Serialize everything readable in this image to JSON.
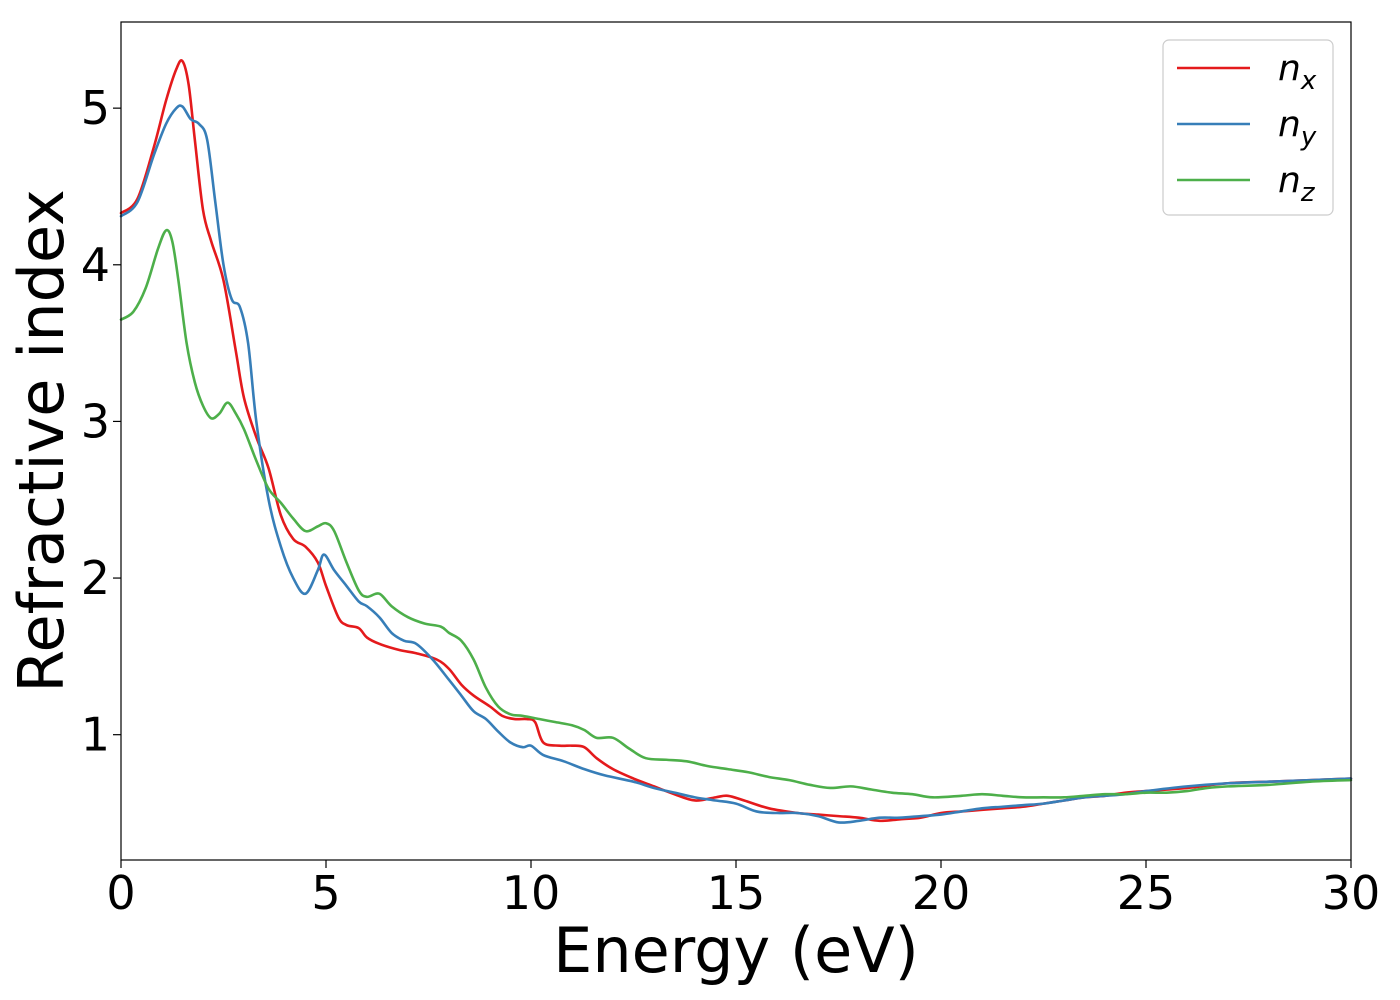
{
  "chart_data": {
    "type": "line",
    "title": "",
    "xlabel": "Energy (eV)",
    "ylabel": "Refractive index",
    "xlim": [
      0,
      30
    ],
    "ylim": [
      0.2,
      5.55
    ],
    "xticks": [
      0,
      5,
      10,
      15,
      20,
      25,
      30
    ],
    "yticks": [
      1,
      2,
      3,
      4,
      5
    ],
    "grid": false,
    "legend_position": "top-right",
    "series": [
      {
        "name": "n",
        "subscript": "x",
        "color": "#e41a1c",
        "x": [
          0,
          0.4,
          0.8,
          1.1,
          1.35,
          1.5,
          1.65,
          1.8,
          2.0,
          2.2,
          2.5,
          2.8,
          3.0,
          3.3,
          3.6,
          3.9,
          4.2,
          4.5,
          4.8,
          5.0,
          5.3,
          5.5,
          5.8,
          6.0,
          6.3,
          6.8,
          7.2,
          7.7,
          8.0,
          8.3,
          8.6,
          9.0,
          9.3,
          9.6,
          9.9,
          10.1,
          10.3,
          10.7,
          11.0,
          11.3,
          11.6,
          12.0,
          12.5,
          13.0,
          13.5,
          14.0,
          14.5,
          14.8,
          15.2,
          15.8,
          16.5,
          17.0,
          17.5,
          18.0,
          18.5,
          19.0,
          19.5,
          20.0,
          20.5,
          21.0,
          21.5,
          22.0,
          22.5,
          23.0,
          23.5,
          24.0,
          24.5,
          25.0,
          26.0,
          27.0,
          28.0,
          29.0,
          30.0
        ],
        "values": [
          4.33,
          4.42,
          4.75,
          5.05,
          5.25,
          5.3,
          5.15,
          4.8,
          4.35,
          4.15,
          3.9,
          3.45,
          3.15,
          2.9,
          2.7,
          2.4,
          2.25,
          2.2,
          2.1,
          1.95,
          1.75,
          1.7,
          1.68,
          1.62,
          1.58,
          1.54,
          1.52,
          1.48,
          1.42,
          1.32,
          1.25,
          1.18,
          1.12,
          1.1,
          1.1,
          1.08,
          0.95,
          0.93,
          0.93,
          0.92,
          0.85,
          0.78,
          0.72,
          0.67,
          0.62,
          0.58,
          0.6,
          0.61,
          0.58,
          0.53,
          0.5,
          0.49,
          0.48,
          0.47,
          0.45,
          0.46,
          0.47,
          0.5,
          0.51,
          0.52,
          0.53,
          0.54,
          0.56,
          0.58,
          0.6,
          0.61,
          0.63,
          0.64,
          0.66,
          0.69,
          0.7,
          0.71,
          0.72
        ]
      },
      {
        "name": "n",
        "subscript": "y",
        "color": "#377eb8",
        "x": [
          0,
          0.4,
          0.8,
          1.1,
          1.35,
          1.5,
          1.7,
          1.9,
          2.1,
          2.3,
          2.5,
          2.7,
          2.9,
          3.1,
          3.3,
          3.6,
          3.9,
          4.2,
          4.5,
          4.8,
          4.95,
          5.2,
          5.5,
          5.8,
          6.0,
          6.3,
          6.6,
          6.9,
          7.2,
          7.6,
          8.0,
          8.3,
          8.6,
          8.9,
          9.2,
          9.5,
          9.8,
          10.0,
          10.3,
          10.8,
          11.3,
          11.8,
          12.5,
          13.0,
          13.5,
          14.0,
          14.5,
          15.0,
          15.5,
          16.0,
          16.5,
          17.0,
          17.5,
          18.0,
          18.5,
          19.0,
          19.5,
          20.0,
          20.5,
          21.0,
          21.5,
          22.0,
          22.5,
          23.0,
          23.5,
          24.0,
          24.5,
          25.0,
          26.0,
          27.0,
          28.0,
          29.0,
          30.0
        ],
        "values": [
          4.31,
          4.4,
          4.7,
          4.9,
          5.0,
          5.01,
          4.93,
          4.9,
          4.8,
          4.4,
          4.0,
          3.78,
          3.73,
          3.5,
          3.0,
          2.5,
          2.2,
          2.0,
          1.9,
          2.05,
          2.15,
          2.05,
          1.95,
          1.85,
          1.82,
          1.75,
          1.65,
          1.6,
          1.58,
          1.48,
          1.35,
          1.25,
          1.15,
          1.1,
          1.02,
          0.95,
          0.92,
          0.93,
          0.87,
          0.83,
          0.78,
          0.74,
          0.7,
          0.66,
          0.63,
          0.6,
          0.58,
          0.56,
          0.51,
          0.5,
          0.5,
          0.48,
          0.44,
          0.45,
          0.47,
          0.47,
          0.48,
          0.49,
          0.51,
          0.53,
          0.54,
          0.55,
          0.56,
          0.58,
          0.6,
          0.61,
          0.62,
          0.64,
          0.67,
          0.69,
          0.7,
          0.71,
          0.72
        ]
      },
      {
        "name": "n",
        "subscript": "z",
        "color": "#4daf4a",
        "x": [
          0,
          0.3,
          0.6,
          0.9,
          1.1,
          1.25,
          1.4,
          1.6,
          1.8,
          2.0,
          2.2,
          2.4,
          2.6,
          2.8,
          3.0,
          3.3,
          3.6,
          3.9,
          4.2,
          4.5,
          4.8,
          5.0,
          5.2,
          5.5,
          5.8,
          6.0,
          6.3,
          6.6,
          7.0,
          7.4,
          7.8,
          8.0,
          8.3,
          8.6,
          8.9,
          9.2,
          9.5,
          9.8,
          10.2,
          10.6,
          11.0,
          11.3,
          11.6,
          12.0,
          12.4,
          12.8,
          13.3,
          13.8,
          14.3,
          14.8,
          15.3,
          15.8,
          16.3,
          16.8,
          17.3,
          17.8,
          18.3,
          18.8,
          19.3,
          19.8,
          20.5,
          21.0,
          21.5,
          22.0,
          22.5,
          23.0,
          23.5,
          24.0,
          24.5,
          25.0,
          25.5,
          26.0,
          26.5,
          27.0,
          28.0,
          29.0,
          30.0
        ],
        "values": [
          3.65,
          3.7,
          3.85,
          4.1,
          4.22,
          4.15,
          3.9,
          3.5,
          3.25,
          3.1,
          3.02,
          3.05,
          3.12,
          3.05,
          2.95,
          2.75,
          2.57,
          2.48,
          2.38,
          2.3,
          2.33,
          2.35,
          2.3,
          2.1,
          1.92,
          1.88,
          1.9,
          1.82,
          1.75,
          1.71,
          1.69,
          1.65,
          1.6,
          1.48,
          1.3,
          1.18,
          1.13,
          1.12,
          1.1,
          1.08,
          1.06,
          1.03,
          0.98,
          0.98,
          0.91,
          0.85,
          0.84,
          0.83,
          0.8,
          0.78,
          0.76,
          0.73,
          0.71,
          0.68,
          0.66,
          0.67,
          0.65,
          0.63,
          0.62,
          0.6,
          0.61,
          0.62,
          0.61,
          0.6,
          0.6,
          0.6,
          0.61,
          0.62,
          0.62,
          0.63,
          0.63,
          0.64,
          0.66,
          0.67,
          0.68,
          0.7,
          0.71
        ]
      }
    ]
  }
}
